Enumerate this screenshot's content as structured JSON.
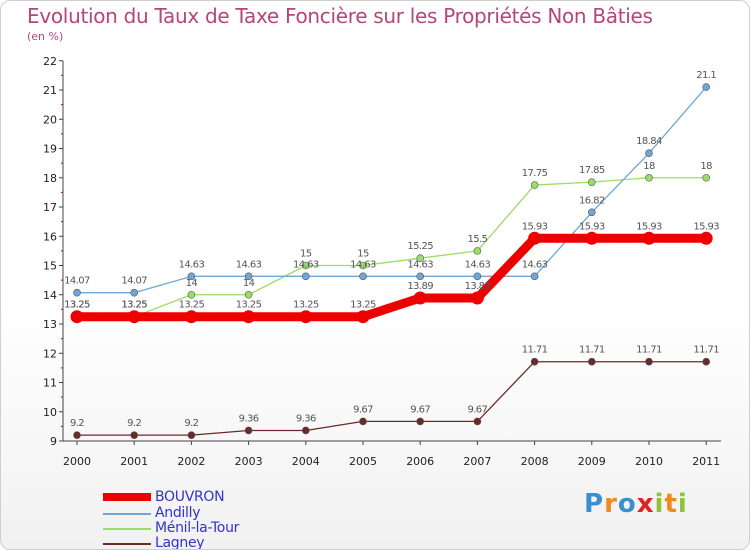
{
  "header": {
    "title": "Evolution du Taux de Taxe Foncière sur les Propriétés Non Bâties",
    "subtitle": "(en %)"
  },
  "logo": {
    "p": "P",
    "r": "r",
    "o": "o",
    "x": "x",
    "i": "i",
    "t": "t",
    "i2": "i"
  },
  "chart_data": {
    "type": "line",
    "title": "Evolution du Taux de Taxe Foncière sur les Propriétés Non Bâties",
    "ylabel": "(en %)",
    "xlabel": "",
    "x": [
      "2000",
      "2001",
      "2002",
      "2003",
      "2004",
      "2005",
      "2006",
      "2007",
      "2008",
      "2009",
      "2010",
      "2011"
    ],
    "ylim": [
      9,
      22
    ],
    "yticks": [
      9,
      10,
      11,
      12,
      13,
      14,
      15,
      16,
      17,
      18,
      19,
      20,
      21,
      22
    ],
    "grid": false,
    "legend_position": "bottom-left",
    "series": [
      {
        "name": "Lagney",
        "color": "#6b2a2a",
        "values": [
          9.2,
          9.2,
          9.2,
          9.36,
          9.36,
          9.67,
          9.67,
          9.67,
          11.71,
          11.71,
          11.71,
          11.71
        ],
        "labels": [
          "9.2",
          "9.2",
          "9.2",
          "9.36",
          "9.36",
          "9.67",
          "9.67",
          "9.67",
          "11.71",
          "11.71",
          "11.71",
          "11.71"
        ]
      },
      {
        "name": "Ménil-la-Tour",
        "color": "#99dd66",
        "values": [
          13.25,
          13.25,
          14,
          14,
          15,
          15,
          15.25,
          15.5,
          17.75,
          17.85,
          18,
          18
        ],
        "labels": [
          "13.25",
          "13.25",
          "14",
          "14",
          "15",
          "15",
          "15.25",
          "15.5",
          "17.75",
          "17.85",
          "18",
          "18"
        ]
      },
      {
        "name": "Andilly",
        "color": "#6fa6d6",
        "values": [
          14.07,
          14.07,
          14.63,
          14.63,
          14.63,
          14.63,
          14.63,
          14.63,
          14.63,
          16.82,
          18.84,
          21.1
        ],
        "labels": [
          "14.07",
          "14.07",
          "14.63",
          "14.63",
          "14.63",
          "14.63",
          "14.63",
          "14.63",
          "14.63",
          "16.82",
          "18.84",
          "21.1"
        ]
      },
      {
        "name": "BOUVRON",
        "color": "#ee0000",
        "values": [
          13.25,
          13.25,
          13.25,
          13.25,
          13.25,
          13.25,
          13.89,
          13.89,
          15.93,
          15.93,
          15.93,
          15.93
        ],
        "labels": [
          "13.25",
          "13.25",
          "13.25",
          "13.25",
          "13.25",
          "13.25",
          "13.89",
          "13.89",
          "15.93",
          "15.93",
          "15.93",
          "15.93"
        ]
      }
    ],
    "legend": [
      "BOUVRON",
      "Andilly",
      "Ménil-la-Tour",
      "Lagney"
    ]
  }
}
